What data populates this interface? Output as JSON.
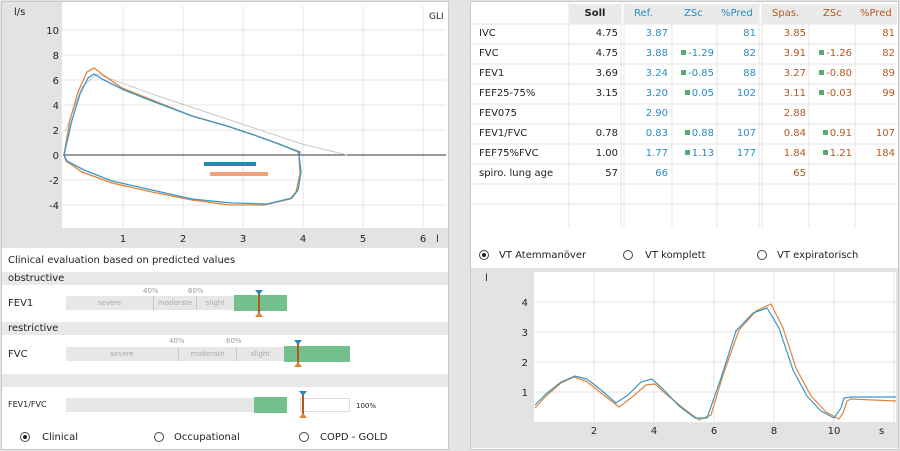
{
  "flow_chart": {
    "y_unit": "l/s",
    "x_unit": "l",
    "badge": "GLI",
    "y_ticks": [
      "10",
      "8",
      "6",
      "4",
      "2",
      "0",
      "-2",
      "-4"
    ],
    "x_ticks": [
      "1",
      "2",
      "3",
      "4",
      "5",
      "6"
    ]
  },
  "evaluation": {
    "title": "Clinical evaluation based on predicted values",
    "obstructive_label": "obstructive",
    "restrictive_label": "restrictive",
    "fev1": {
      "label": "FEV1",
      "pct40": "40%",
      "pct60": "60%",
      "severe": "severe",
      "moderate": "moderate",
      "slight": "slight"
    },
    "fvc": {
      "label": "FVC",
      "pct40": "40%",
      "pct60": "60%",
      "severe": "severe",
      "moderate": "moderate",
      "slight": "slight"
    },
    "fev1fvc": {
      "label": "FEV1/FVC",
      "pct100": "100%"
    }
  },
  "mode_radios": [
    {
      "label": "Clinical",
      "selected": true
    },
    {
      "label": "Occupational",
      "selected": false
    },
    {
      "label": "COPD - GOLD",
      "selected": false
    }
  ],
  "table": {
    "headers": {
      "soll": "Soll",
      "ref": "Ref.",
      "zsc1": "ZSc",
      "pred1": "%Pred",
      "spas": "Spas.",
      "zsc2": "ZSc",
      "pred2": "%Pred"
    },
    "rows": [
      {
        "name": "IVC",
        "soll": "4.75",
        "ref": "3.87",
        "zsc": "",
        "pred": "81",
        "spas": "3.85",
        "zsc2": "",
        "pred2": "81"
      },
      {
        "name": "FVC",
        "soll": "4.75",
        "ref": "3.88",
        "zsc": "-1.29",
        "pred": "82",
        "spas": "3.91",
        "zsc2": "-1.26",
        "pred2": "82"
      },
      {
        "name": "FEV1",
        "soll": "3.69",
        "ref": "3.24",
        "zsc": "-0.85",
        "pred": "88",
        "spas": "3.27",
        "zsc2": "-0.80",
        "pred2": "89"
      },
      {
        "name": "FEF25-75%",
        "soll": "3.15",
        "ref": "3.20",
        "zsc": "0.05",
        "pred": "102",
        "spas": "3.11",
        "zsc2": "-0.03",
        "pred2": "99"
      },
      {
        "name": "FEV075",
        "soll": "",
        "ref": "2.90",
        "zsc": "",
        "pred": "",
        "spas": "2.88",
        "zsc2": "",
        "pred2": ""
      },
      {
        "name": "FEV1/FVC",
        "soll": "0.78",
        "ref": "0.83",
        "zsc": "0.88",
        "pred": "107",
        "spas": "0.84",
        "zsc2": "0.91",
        "pred2": "107"
      },
      {
        "name": "FEF75%FVC",
        "soll": "1.00",
        "ref": "1.77",
        "zsc": "1.13",
        "pred": "177",
        "spas": "1.84",
        "zsc2": "1.21",
        "pred2": "184"
      },
      {
        "name": "spiro. lung age",
        "soll": "57",
        "ref": "66",
        "zsc": "",
        "pred": "",
        "spas": "65",
        "zsc2": "",
        "pred2": ""
      }
    ]
  },
  "vt_radios": [
    {
      "label": "VT Atemmanöver",
      "selected": true
    },
    {
      "label": "VT komplett",
      "selected": false
    },
    {
      "label": "VT expiratorisch",
      "selected": false
    }
  ],
  "vt_chart": {
    "y_unit": "l",
    "x_unit": "s",
    "y_ticks": [
      "4",
      "3",
      "2",
      "1"
    ],
    "x_ticks": [
      "2",
      "4",
      "6",
      "8",
      "10"
    ]
  },
  "colors": {
    "ref": "#2a8bbf",
    "spas": "#b4561e",
    "blue_curve": "#3b97c4",
    "orange_curve": "#e0843a",
    "green": "#74c08c"
  }
}
